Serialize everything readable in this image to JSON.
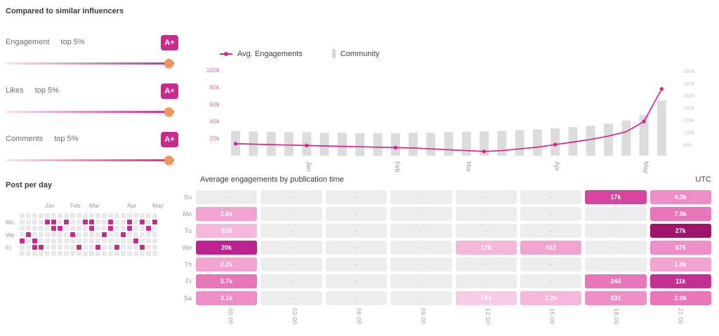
{
  "colors": {
    "accent": "#c92a8d",
    "line": "#d6268c",
    "bar": "#dcdcdc",
    "knob": "#f5935b",
    "left_axis_text": "#e471ad",
    "right_axis_text": "#c6c6c6",
    "muted_text": "#9a9a9a",
    "empty_cell_bg": "#ededed"
  },
  "left_panel": {
    "title": "Compared to similar influencers",
    "metrics": [
      {
        "label": "Engagement",
        "rank": "top 5%",
        "grade": "A+",
        "slider_percent": 97
      },
      {
        "label": "Likes",
        "rank": "top 5%",
        "grade": "A+",
        "slider_percent": 97
      },
      {
        "label": "Comments",
        "rank": "top 5%",
        "grade": "A+",
        "slider_percent": 97
      }
    ],
    "post_per_day": {
      "title": "Post per day",
      "months": [
        "Jan",
        "Feb",
        "Mar",
        "Apr",
        "May"
      ],
      "month_cols": [
        4,
        8,
        11,
        17,
        21
      ],
      "day_labels": [
        {
          "label": "Mo",
          "row": 1
        },
        {
          "label": "We",
          "row": 3
        },
        {
          "label": "Fr",
          "row": 5
        }
      ],
      "cols": 22,
      "rows": 7,
      "active_cells": [
        [
          0,
          4
        ],
        [
          1,
          3
        ],
        [
          2,
          4
        ],
        [
          2,
          5
        ],
        [
          3,
          5
        ],
        [
          4,
          1
        ],
        [
          5,
          1
        ],
        [
          5,
          2
        ],
        [
          6,
          2
        ],
        [
          7,
          1
        ],
        [
          8,
          3
        ],
        [
          9,
          5
        ],
        [
          10,
          1
        ],
        [
          11,
          1
        ],
        [
          11,
          2
        ],
        [
          12,
          5
        ],
        [
          13,
          3
        ],
        [
          14,
          1
        ],
        [
          14,
          2
        ],
        [
          15,
          5
        ],
        [
          16,
          3
        ],
        [
          17,
          1
        ],
        [
          17,
          2
        ],
        [
          18,
          4
        ],
        [
          19,
          1
        ],
        [
          19,
          5
        ],
        [
          20,
          2
        ],
        [
          21,
          1
        ]
      ]
    }
  },
  "chart_data": {
    "type": "bar",
    "subtype": "bar+line combo",
    "legend": [
      {
        "label": "Avg. Engagements",
        "marker": "line-dot-icon"
      },
      {
        "label": "Community",
        "marker": "bar-icon"
      }
    ],
    "left_axis": {
      "max_k": 100,
      "ticks": [
        {
          "label": "100k",
          "value_k": 100
        },
        {
          "label": "80k",
          "value_k": 80
        },
        {
          "label": "60k",
          "value_k": 60
        },
        {
          "label": "40k",
          "value_k": 40
        },
        {
          "label": "20k",
          "value_k": 20
        }
      ]
    },
    "right_axis": {
      "max_k": 200,
      "ticks": [
        "200k",
        "180k",
        "160k",
        "140k",
        "120k",
        "100k",
        "80k"
      ]
    },
    "month_ticks": [
      {
        "label": "Jan",
        "index": 4
      },
      {
        "label": "Feb",
        "index": 9
      },
      {
        "label": "Mar",
        "index": 13
      },
      {
        "label": "Apr",
        "index": 18
      },
      {
        "label": "May",
        "index": 23
      }
    ],
    "series": [
      {
        "name": "Avg. Engagements",
        "type": "line",
        "values_k": [
          14,
          13.5,
          13,
          12.5,
          12,
          11.5,
          11,
          10.5,
          10,
          9.5,
          9,
          8,
          7,
          6,
          5,
          6,
          8,
          10,
          13,
          16,
          19,
          23,
          28,
          40,
          78
        ]
      },
      {
        "name": "Community",
        "type": "bar",
        "values_k": [
          58,
          57,
          56,
          55,
          55,
          54,
          54,
          53,
          53,
          53,
          54,
          54,
          55,
          56,
          57,
          58,
          60,
          62,
          64,
          67,
          70,
          75,
          82,
          95,
          130
        ]
      }
    ],
    "marker_indices": [
      0,
      4,
      9,
      14,
      18,
      23,
      24
    ]
  },
  "publication_table": {
    "title": "Average engagements by publication time",
    "timezone": "UTC",
    "day_rows": [
      "Su",
      "Mo",
      "Tu",
      "We",
      "Th",
      "Fr",
      "Sa"
    ],
    "time_cols": [
      "00:00",
      "03:00",
      "06:00",
      "09:00",
      "12:00",
      "15:00",
      "18:00",
      "21:00"
    ],
    "cells": [
      [
        {
          "v": "-"
        },
        {
          "v": "-"
        },
        {
          "v": "-"
        },
        {
          "v": "-"
        },
        {
          "v": "-"
        },
        {
          "v": "-"
        },
        {
          "v": "17k",
          "bg": "#d6449f"
        },
        {
          "v": "4.3k",
          "bg": "#ef8ec6"
        }
      ],
      [
        {
          "v": "1.6k",
          "bg": "#f2a3d0"
        },
        {
          "v": "-"
        },
        {
          "v": "-"
        },
        {
          "v": "-"
        },
        {
          "v": "-"
        },
        {
          "v": "-"
        },
        {
          "v": "-"
        },
        {
          "v": "7.9k",
          "bg": "#e976b9"
        }
      ],
      [
        {
          "v": "818",
          "bg": "#f5b8da"
        },
        {
          "v": "-"
        },
        {
          "v": "-"
        },
        {
          "v": "-"
        },
        {
          "v": "-"
        },
        {
          "v": "-"
        },
        {
          "v": "-"
        },
        {
          "v": "27k",
          "bg": "#9e1468"
        }
      ],
      [
        {
          "v": "20k",
          "bg": "#bc2390"
        },
        {
          "v": "-"
        },
        {
          "v": "-"
        },
        {
          "v": "-"
        },
        {
          "v": "178",
          "bg": "#f5b8da"
        },
        {
          "v": "412",
          "bg": "#f2a3d0"
        },
        {
          "v": "-"
        },
        {
          "v": "875",
          "bg": "#ef8ec6"
        }
      ],
      [
        {
          "v": "2.2k",
          "bg": "#f2a3d0"
        },
        {
          "v": "-"
        },
        {
          "v": "-"
        },
        {
          "v": "-"
        },
        {
          "v": "-"
        },
        {
          "v": "-"
        },
        {
          "v": "-"
        },
        {
          "v": "1.0k",
          "bg": "#f2a3d0"
        }
      ],
      [
        {
          "v": "5.7k",
          "bg": "#e976b9"
        },
        {
          "v": "-"
        },
        {
          "v": "-"
        },
        {
          "v": "-"
        },
        {
          "v": "-"
        },
        {
          "v": "-"
        },
        {
          "v": "244",
          "bg": "#e976b9"
        },
        {
          "v": "11k",
          "bg": "#c52e92"
        }
      ],
      [
        {
          "v": "3.1k",
          "bg": "#ef8ec6"
        },
        {
          "v": "-"
        },
        {
          "v": "-"
        },
        {
          "v": "-"
        },
        {
          "v": "144",
          "bg": "#f8cce4"
        },
        {
          "v": "1.2k",
          "bg": "#f5b8da"
        },
        {
          "v": "531",
          "bg": "#ef8ec6"
        },
        {
          "v": "2.0k",
          "bg": "#e976b9"
        }
      ]
    ]
  }
}
